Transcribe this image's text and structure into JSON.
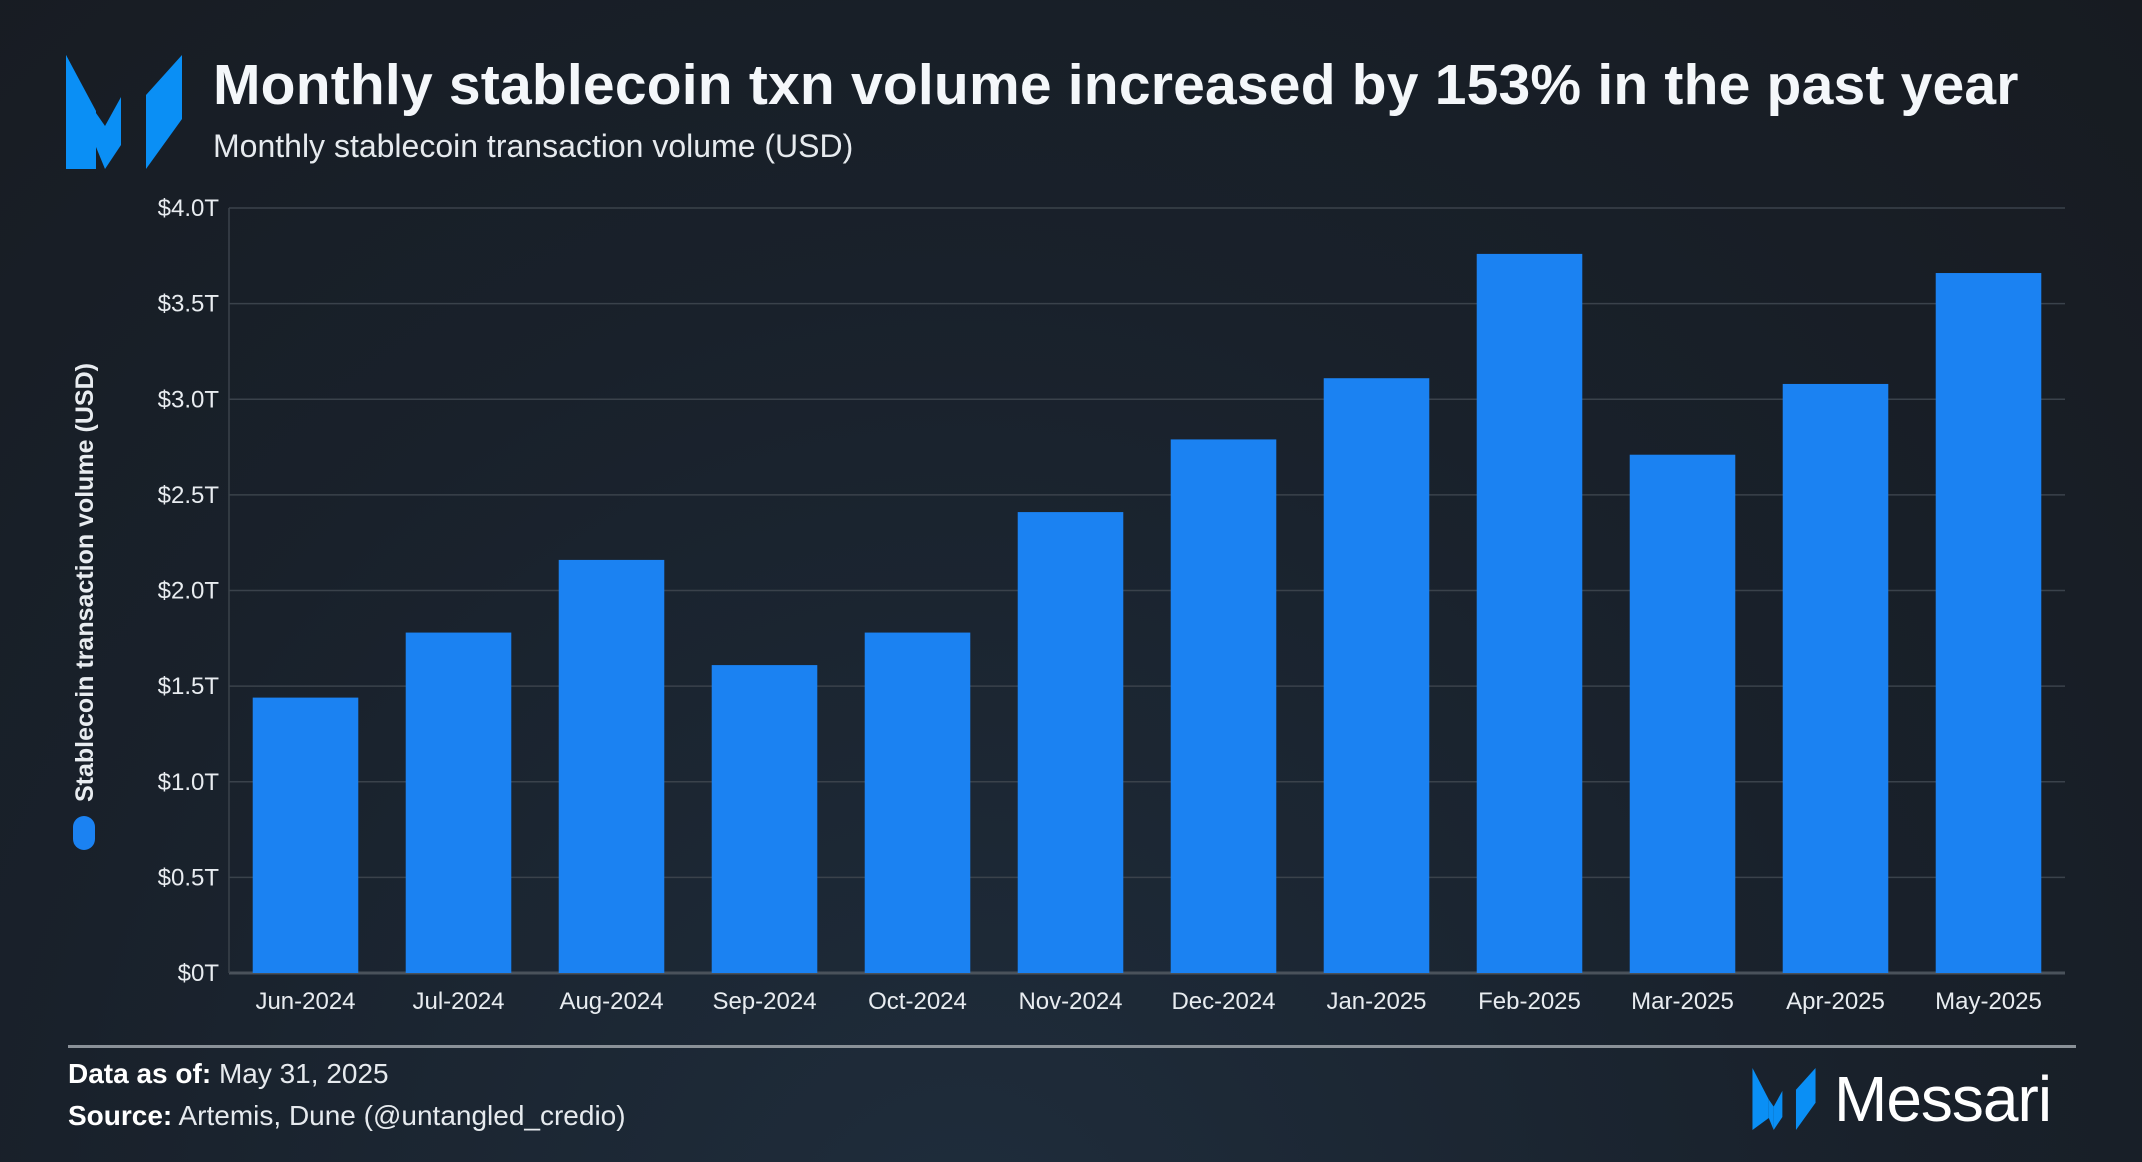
{
  "header": {
    "title": "Monthly stablecoin txn volume increased by 153% in the past year",
    "subtitle": "Monthly stablecoin transaction volume (USD)"
  },
  "footer": {
    "data_as_of_label": "Data as of:",
    "data_as_of_value": "May 31, 2025",
    "source_label": "Source:",
    "source_value": "Artemis, Dune (@untangled_credio)",
    "brand": "Messari"
  },
  "colors": {
    "bar": "#1b82f2",
    "logo": "#0a8ff5",
    "background": "#19212b",
    "grid": "#3a424b"
  },
  "chart_data": {
    "type": "bar",
    "title": "Monthly stablecoin txn volume increased by 153% in the past year",
    "subtitle": "Monthly stablecoin transaction volume (USD)",
    "xlabel": "",
    "ylabel": "Stablecoin transaction volume (USD)",
    "ylim": [
      0,
      4.0
    ],
    "yunit": "trillion USD",
    "yticks": [
      "$0T",
      "$0.5T",
      "$1.0T",
      "$1.5T",
      "$2.0T",
      "$2.5T",
      "$3.0T",
      "$3.5T",
      "$4.0T"
    ],
    "grid": true,
    "legend": "left-vertical",
    "categories": [
      "Jun-2024",
      "Jul-2024",
      "Aug-2024",
      "Sep-2024",
      "Oct-2024",
      "Nov-2024",
      "Dec-2024",
      "Jan-2025",
      "Feb-2025",
      "Mar-2025",
      "Apr-2025",
      "May-2025"
    ],
    "series": [
      {
        "name": "Stablecoin transaction volume (USD)",
        "values": [
          1.44,
          1.78,
          2.16,
          1.61,
          1.78,
          2.41,
          2.79,
          3.11,
          3.76,
          2.71,
          3.08,
          3.66
        ]
      }
    ]
  }
}
